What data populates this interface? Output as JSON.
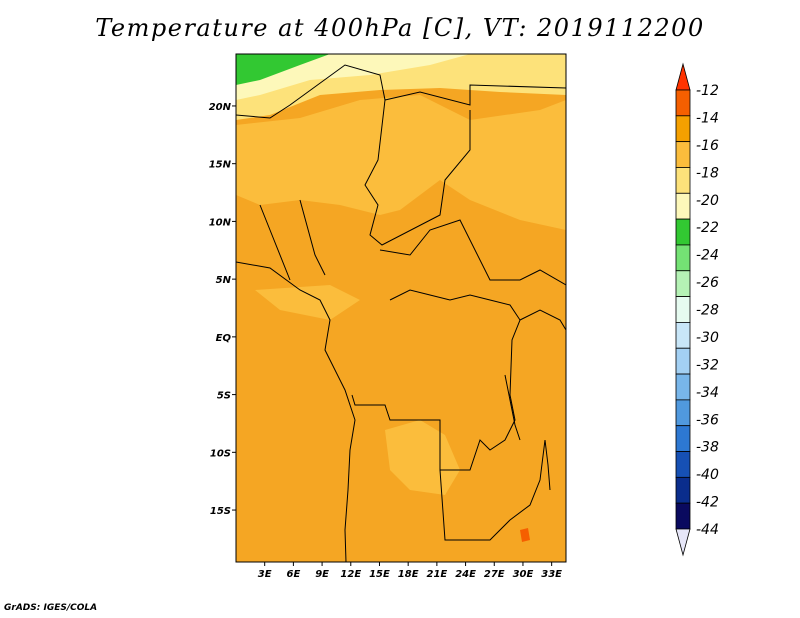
{
  "title": "Temperature at 400hPa [C], VT: 2019112200",
  "credit": "GrADS: IGES/COLA",
  "map": {
    "lon_range": [
      0,
      34.5
    ],
    "lat_range": [
      -19.5,
      24.5
    ],
    "lon_ticks": [
      "3E",
      "6E",
      "9E",
      "12E",
      "15E",
      "18E",
      "21E",
      "24E",
      "27E",
      "30E",
      "33E"
    ],
    "lat_ticks": [
      "20N",
      "15N",
      "10N",
      "5N",
      "EQ",
      "5S",
      "10S",
      "15S"
    ],
    "background_color": "#f5a623"
  },
  "colorbar": {
    "labels": [
      "-12",
      "-14",
      "-16",
      "-18",
      "-20",
      "-22",
      "-24",
      "-26",
      "-28",
      "-30",
      "-32",
      "-34",
      "-36",
      "-38",
      "-40",
      "-42",
      "-44"
    ],
    "colors": [
      "#ff3300",
      "#f55f00",
      "#f5a000",
      "#fbbd3c",
      "#fde27a",
      "#fdf8ba",
      "#32c832",
      "#74e274",
      "#b5f2b5",
      "#e6fbf0",
      "#c8e6f8",
      "#a3d0f3",
      "#78b6ea",
      "#5099de",
      "#2d78d2",
      "#1650b4",
      "#0a2d8c",
      "#0a0a5f",
      "#e6e6f8"
    ]
  }
}
